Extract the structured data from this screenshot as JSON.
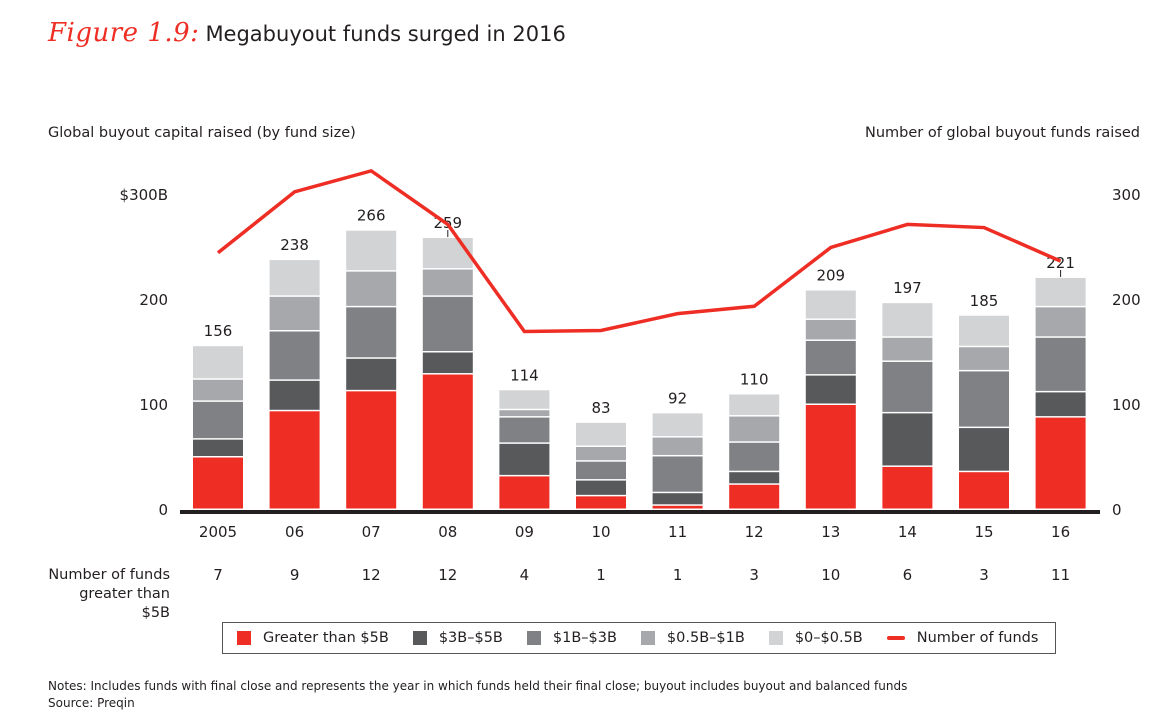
{
  "header": {
    "figure_label": "Figure 1.9:",
    "title": "Megabuyout funds surged in 2016"
  },
  "chart_data": {
    "type": "bar",
    "subtype": "stacked-bar-with-line",
    "title": "Megabuyout funds surged in 2016",
    "ylabel_left": "Global buyout capital raised (by fund size)",
    "ylabel_right": "Number of global buyout funds raised",
    "ylim": [
      0,
      300
    ],
    "y_ticks_left": [
      "0",
      "100",
      "200",
      "$300B"
    ],
    "y_ticks_right": [
      "0",
      "100",
      "200",
      "300"
    ],
    "y_tick_values": [
      0,
      100,
      200,
      300
    ],
    "categories": [
      "2005",
      "06",
      "07",
      "08",
      "09",
      "10",
      "11",
      "12",
      "13",
      "14",
      "15",
      "16"
    ],
    "series": [
      {
        "name": "Greater than $5B",
        "color": "#ee2e24",
        "values": [
          50,
          94,
          113,
          129,
          32,
          13,
          4,
          24,
          100,
          41,
          36,
          88
        ]
      },
      {
        "name": "$3B–$5B",
        "color": "#58595b",
        "values": [
          17,
          29,
          31,
          21,
          31,
          15,
          12,
          12,
          28,
          51,
          42,
          24
        ]
      },
      {
        "name": "$1B–$3B",
        "color": "#808184",
        "values": [
          36,
          47,
          49,
          53,
          25,
          18,
          35,
          28,
          33,
          49,
          54,
          52
        ]
      },
      {
        "name": "$0.5B–$1B",
        "color": "#a7a8ab",
        "values": [
          21,
          33,
          34,
          26,
          7,
          14,
          18,
          25,
          20,
          23,
          23,
          29
        ]
      },
      {
        "name": "$0–$0.5B",
        "color": "#d2d3d5",
        "values": [
          32,
          35,
          39,
          30,
          19,
          23,
          23,
          21,
          28,
          33,
          30,
          28
        ]
      }
    ],
    "totals": [
      156,
      238,
      266,
      259,
      114,
      83,
      92,
      110,
      209,
      197,
      185,
      221
    ],
    "line_series": {
      "name": "Number of funds",
      "color": "#ee2e24",
      "axis": "right",
      "values": [
        245,
        303,
        323,
        272,
        170,
        171,
        187,
        194,
        250,
        272,
        269,
        237
      ]
    },
    "funds_greater_than_5b": {
      "label_line1": "Number of funds",
      "label_line2": "greater than $5B",
      "values": [
        "7",
        "9",
        "12",
        "12",
        "4",
        "1",
        "1",
        "3",
        "10",
        "6",
        "3",
        "11"
      ]
    },
    "leader_line_indices": [
      3,
      11
    ],
    "grid": false,
    "legend_position": "bottom"
  },
  "legend": {
    "items": [
      {
        "label": "Greater than $5B",
        "color": "#ee2e24",
        "kind": "square"
      },
      {
        "label": "$3B–$5B",
        "color": "#58595b",
        "kind": "square"
      },
      {
        "label": "$1B–$3B",
        "color": "#808184",
        "kind": "square"
      },
      {
        "label": "$0.5B–$1B",
        "color": "#a7a8ab",
        "kind": "square"
      },
      {
        "label": "$0–$0.5B",
        "color": "#d2d3d5",
        "kind": "square"
      },
      {
        "label": "Number of funds",
        "color": "#ee2e24",
        "kind": "line"
      }
    ]
  },
  "footer": {
    "notes": "Notes: Includes funds with final close and represents the year in which funds held their final close; buyout includes buyout and balanced funds",
    "source": "Source: Preqin"
  }
}
